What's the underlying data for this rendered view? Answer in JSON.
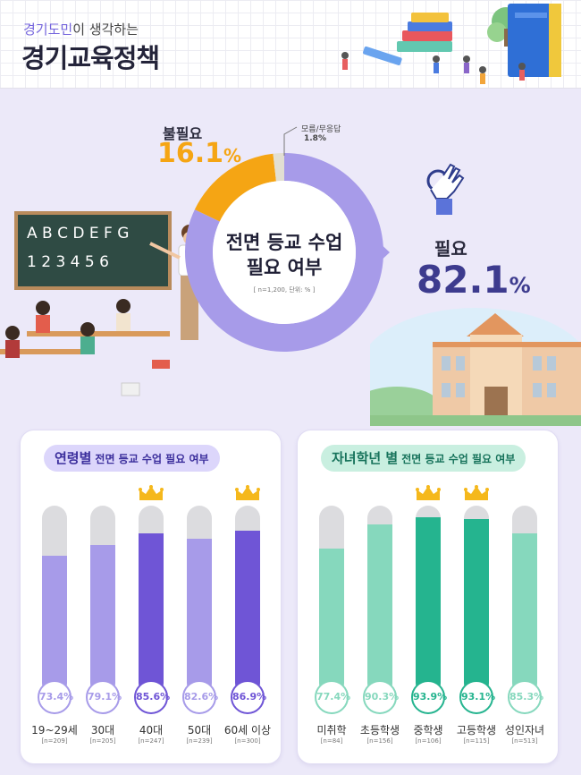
{
  "header": {
    "subtitle_pre": "경기도민",
    "subtitle_post": "이 생각하는",
    "title": "경기교육정책"
  },
  "donut": {
    "center_title_line1": "전면 등교 수업",
    "center_title_line2": "필요 여부",
    "center_note": "[ n=1,200, 단위: % ]",
    "unneeded_label": "불필요",
    "unneeded_value": "16.1",
    "unknown_label": "모름/무응답",
    "unknown_value": "1.8%",
    "needed_label": "필요",
    "needed_value": "82.1",
    "pct_sign": "%"
  },
  "board": {
    "row1": "A B C D E F G",
    "row2": "1 2 3 4 5 6"
  },
  "age_card": {
    "title": "연령별",
    "subtitle": "전면 등교 수업 필요 여부"
  },
  "grade_card": {
    "title": "자녀학년 별",
    "subtitle": "전면 등교 수업 필요 여부"
  },
  "colors": {
    "purple": "#a79be9",
    "purple_dark": "#6f55d6",
    "green": "#86d8bd",
    "green_dark": "#25b48f",
    "orange": "#f5a514",
    "gray": "#dcdcdf"
  },
  "chart_data": [
    {
      "type": "pie",
      "title": "전면 등교 수업 필요 여부",
      "categories": [
        "필요",
        "불필요",
        "모름/무응답"
      ],
      "values": [
        82.1,
        16.1,
        1.8
      ]
    },
    {
      "type": "bar",
      "title": "연령별 전면 등교 수업 필요 여부",
      "categories": [
        "19~29세",
        "30대",
        "40대",
        "50대",
        "60세 이상"
      ],
      "values": [
        73.4,
        79.1,
        85.6,
        82.6,
        86.9
      ],
      "labels": [
        "73.4%",
        "79.1%",
        "85.6%",
        "82.6%",
        "86.9%"
      ],
      "n": [
        "[n=209]",
        "[n=205]",
        "[n=247]",
        "[n=239]",
        "[n=300]"
      ],
      "highlighted": [
        false,
        false,
        true,
        false,
        true
      ],
      "ylim": [
        0,
        100
      ]
    },
    {
      "type": "bar",
      "title": "자녀학년 별 전면 등교 수업 필요 여부",
      "categories": [
        "미취학",
        "초등학생",
        "중학생",
        "고등학생",
        "성인자녀"
      ],
      "values": [
        77.4,
        90.3,
        93.9,
        93.1,
        85.3
      ],
      "labels": [
        "77.4%",
        "90.3%",
        "93.9%",
        "93.1%",
        "85.3%"
      ],
      "n": [
        "[n=84]",
        "[n=156]",
        "[n=106]",
        "[n=115]",
        "[n=513]"
      ],
      "highlighted": [
        false,
        false,
        true,
        true,
        false
      ],
      "ylim": [
        0,
        100
      ]
    }
  ]
}
